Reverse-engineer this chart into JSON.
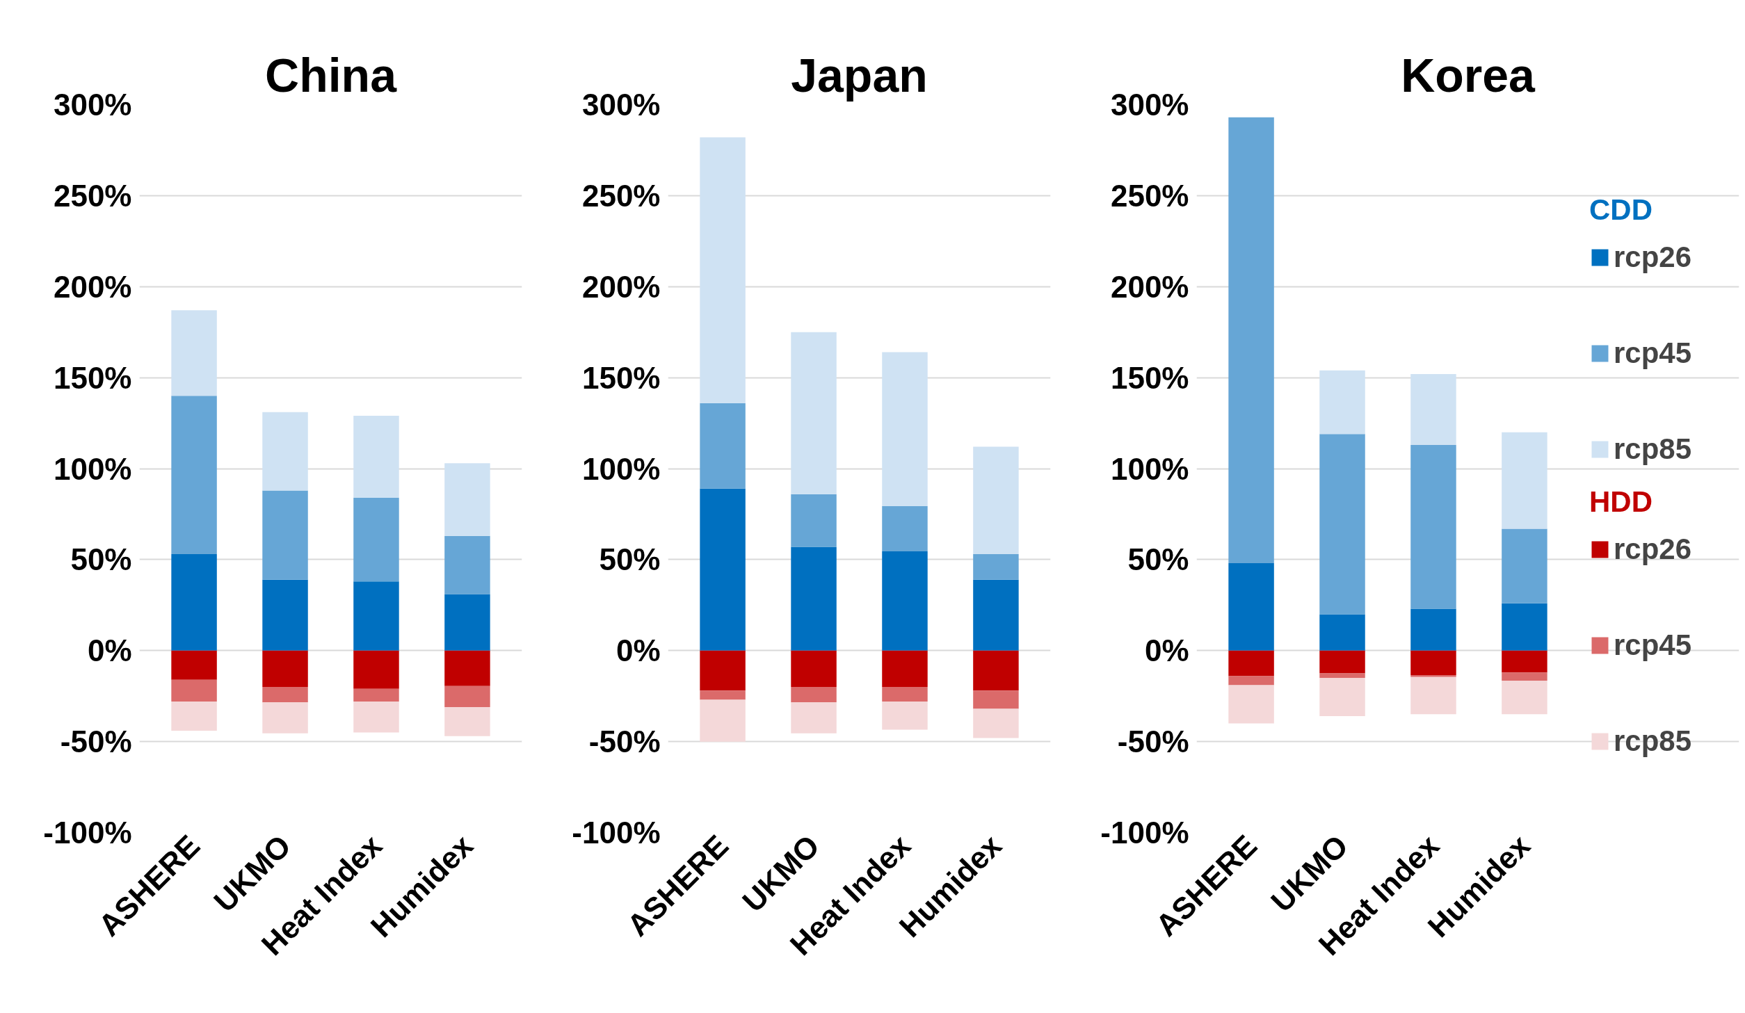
{
  "chart_data": [
    {
      "type": "bar",
      "title": "China",
      "stacked": true,
      "categories": [
        "ASHERE",
        "UKMO",
        "Heat Index",
        "Humidex"
      ],
      "series": [
        {
          "color": "#0070c0",
          "values": [
            53,
            39,
            38,
            31
          ]
        },
        {
          "color": "#66a6d6",
          "values": [
            87,
            49,
            46,
            32
          ]
        },
        {
          "color": "#cfe2f3",
          "values": [
            47,
            43,
            45,
            40
          ]
        },
        {
          "color": "#c00000",
          "values": [
            -16,
            -20,
            -21,
            -19.5
          ]
        },
        {
          "color": "#db6a6a",
          "values": [
            -12,
            -8.5,
            -7,
            -11.5
          ]
        },
        {
          "color": "#f4d8d9",
          "values": [
            -16,
            -17,
            -17,
            -16
          ]
        }
      ],
      "ylim": [
        -100,
        300
      ],
      "yticks": [
        {
          "value": -100,
          "label": "-100%"
        },
        {
          "value": -50,
          "label": "-50%"
        },
        {
          "value": 0,
          "label": "0%"
        },
        {
          "value": 50,
          "label": "50%"
        },
        {
          "value": 100,
          "label": "100%"
        },
        {
          "value": 150,
          "label": "150%"
        },
        {
          "value": 200,
          "label": "200%"
        },
        {
          "value": 250,
          "label": "250%"
        },
        {
          "value": 300,
          "label": "300%"
        }
      ],
      "grid": "y",
      "legend": false
    },
    {
      "type": "bar",
      "title": "Japan",
      "stacked": true,
      "categories": [
        "ASHERE",
        "UKMO",
        "Heat Index",
        "Humidex"
      ],
      "series": [
        {
          "color": "#0070c0",
          "values": [
            89,
            57,
            54.5,
            39
          ]
        },
        {
          "color": "#66a6d6",
          "values": [
            47,
            29,
            25,
            14
          ]
        },
        {
          "color": "#cfe2f3",
          "values": [
            146,
            89,
            84.5,
            59
          ]
        },
        {
          "color": "#c00000",
          "values": [
            -22,
            -20,
            -20,
            -22
          ]
        },
        {
          "color": "#db6a6a",
          "values": [
            -5,
            -8.5,
            -8,
            -10
          ]
        },
        {
          "color": "#f4d8d9",
          "values": [
            -23,
            -17,
            -15.5,
            -16
          ]
        }
      ],
      "ylim": [
        -100,
        300
      ],
      "yticks": [
        {
          "value": -100,
          "label": "-100%"
        },
        {
          "value": -50,
          "label": "-50%"
        },
        {
          "value": 0,
          "label": "0%"
        },
        {
          "value": 50,
          "label": "50%"
        },
        {
          "value": 100,
          "label": "100%"
        },
        {
          "value": 150,
          "label": "150%"
        },
        {
          "value": 200,
          "label": "200%"
        },
        {
          "value": 250,
          "label": "250%"
        },
        {
          "value": 300,
          "label": "300%"
        }
      ],
      "grid": "y",
      "legend": false
    },
    {
      "type": "bar",
      "title": "Korea",
      "stacked": true,
      "categories": [
        "ASHERE",
        "UKMO",
        "Heat Index",
        "Humidex"
      ],
      "series": [
        {
          "name": "rcp26",
          "color": "#0070c0",
          "values": [
            48,
            20,
            23,
            26
          ]
        },
        {
          "name": "rcp45",
          "color": "#66a6d6",
          "values": [
            245,
            99,
            90,
            41
          ]
        },
        {
          "name": "rcp85",
          "color": "#cfe2f3",
          "values": [
            0,
            35,
            39,
            53
          ]
        },
        {
          "name": "rcp26",
          "color": "#c00000",
          "values": [
            -14,
            -12.5,
            -13.5,
            -12
          ]
        },
        {
          "name": "rcp45",
          "color": "#db6a6a",
          "values": [
            -5,
            -2.5,
            -1,
            -4.5
          ]
        },
        {
          "name": "rcp85",
          "color": "#f4d8d9",
          "values": [
            -21,
            -21,
            -20.5,
            -18.5
          ]
        }
      ],
      "ylim": [
        -100,
        300
      ],
      "yticks": [
        {
          "value": -100,
          "label": "-100%"
        },
        {
          "value": -50,
          "label": "-50%"
        },
        {
          "value": 0,
          "label": "0%"
        },
        {
          "value": 50,
          "label": "50%"
        },
        {
          "value": 100,
          "label": "100%"
        },
        {
          "value": 150,
          "label": "150%"
        },
        {
          "value": 200,
          "label": "200%"
        },
        {
          "value": 250,
          "label": "250%"
        },
        {
          "value": 300,
          "label": "300%"
        }
      ],
      "grid": "y",
      "legend": "right",
      "annotations": [
        "CDD",
        "HDD"
      ]
    }
  ]
}
